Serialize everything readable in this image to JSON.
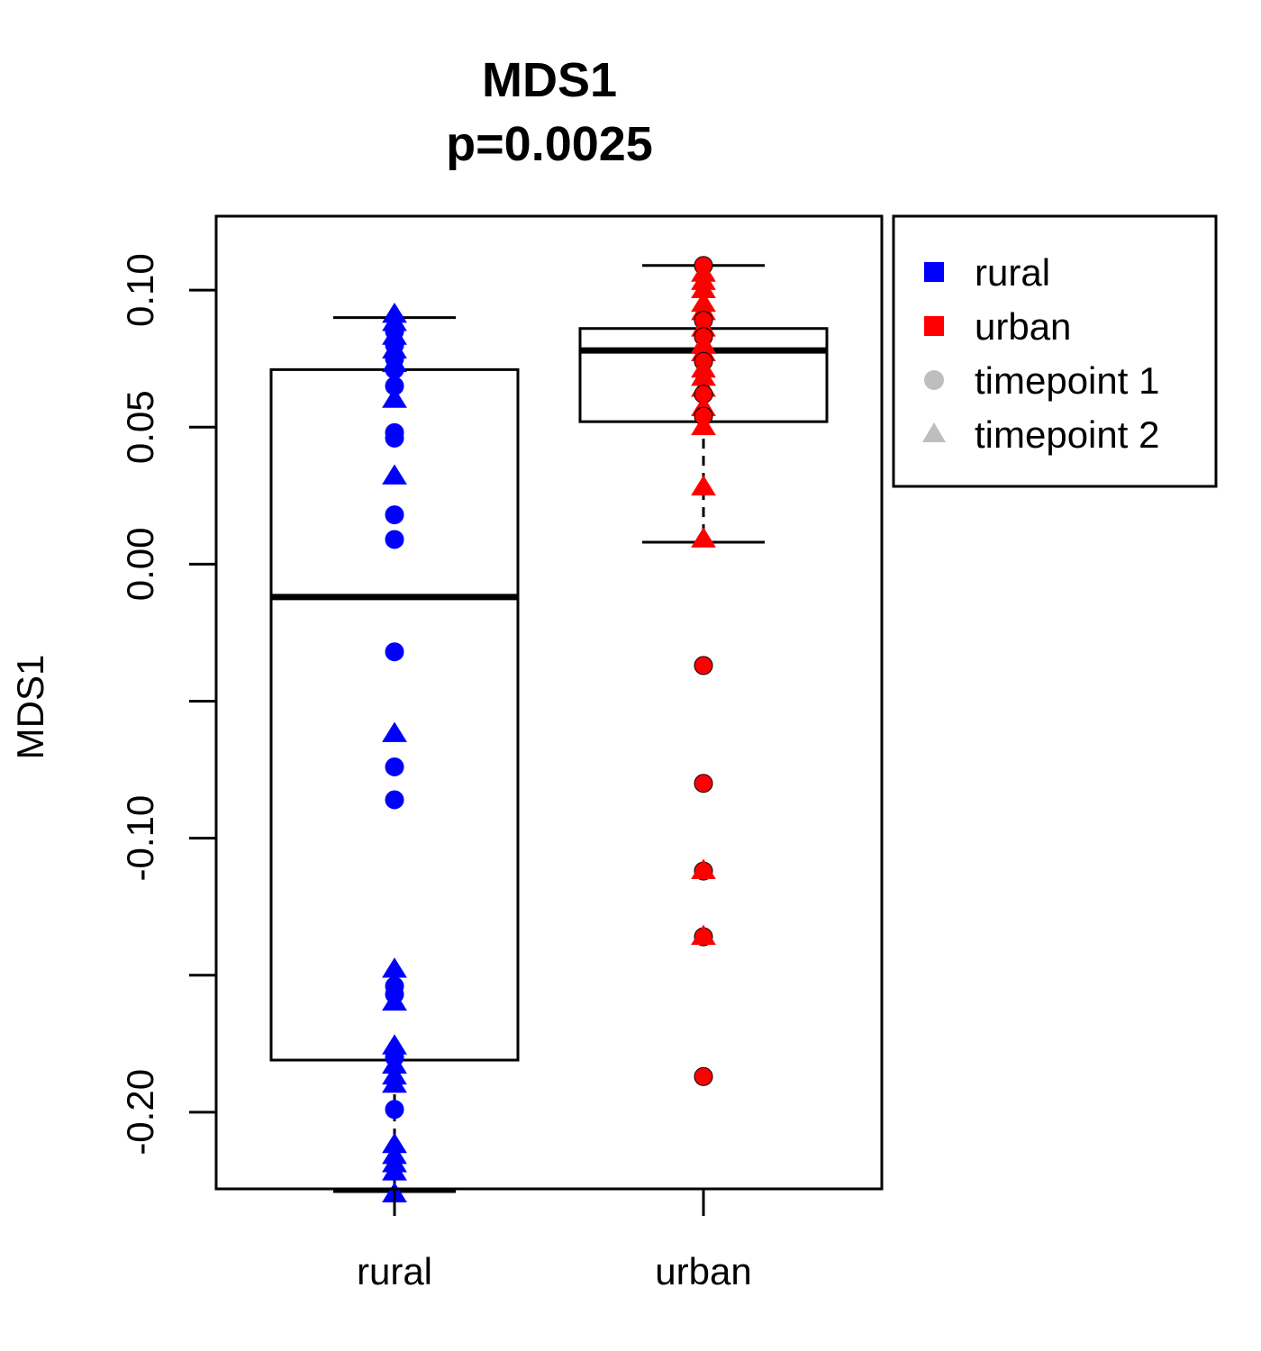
{
  "chart_data": {
    "type": "box",
    "title": "MDS1",
    "subtitle": "p=0.0025",
    "xlabel": "",
    "ylabel": "MDS1",
    "ylim": [
      -0.228,
      0.127
    ],
    "yticks": [
      -0.2,
      -0.15,
      -0.1,
      -0.05,
      0.0,
      0.05,
      0.1
    ],
    "ytick_labels": [
      "-0.20",
      "",
      "-0.10",
      "",
      "0.00",
      "0.05",
      "0.10"
    ],
    "categories": [
      "rural",
      "urban"
    ],
    "colors": {
      "rural": "#0000ff",
      "urban": "#ff0000",
      "timepoint": "#bebebe"
    },
    "boxes": [
      {
        "name": "rural",
        "whisker_low": -0.229,
        "q1": -0.181,
        "median": -0.012,
        "q3": 0.071,
        "whisker_high": 0.09
      },
      {
        "name": "urban",
        "whisker_low": 0.008,
        "q1": 0.052,
        "median": 0.078,
        "q3": 0.086,
        "whisker_high": 0.109
      }
    ],
    "series": [
      {
        "name": "rural",
        "points": [
          {
            "y": 0.091,
            "tp": 2
          },
          {
            "y": 0.088,
            "tp": 2
          },
          {
            "y": 0.085,
            "tp": 1
          },
          {
            "y": 0.083,
            "tp": 2
          },
          {
            "y": 0.08,
            "tp": 1
          },
          {
            "y": 0.078,
            "tp": 2
          },
          {
            "y": 0.075,
            "tp": 1
          },
          {
            "y": 0.073,
            "tp": 2
          },
          {
            "y": 0.071,
            "tp": 1
          },
          {
            "y": 0.065,
            "tp": 1
          },
          {
            "y": 0.06,
            "tp": 2
          },
          {
            "y": 0.048,
            "tp": 1
          },
          {
            "y": 0.046,
            "tp": 1
          },
          {
            "y": 0.032,
            "tp": 2
          },
          {
            "y": 0.018,
            "tp": 1
          },
          {
            "y": 0.009,
            "tp": 1
          },
          {
            "y": -0.032,
            "tp": 1
          },
          {
            "y": -0.062,
            "tp": 2
          },
          {
            "y": -0.074,
            "tp": 1
          },
          {
            "y": -0.086,
            "tp": 1
          },
          {
            "y": -0.148,
            "tp": 2
          },
          {
            "y": -0.154,
            "tp": 1
          },
          {
            "y": -0.157,
            "tp": 1
          },
          {
            "y": -0.16,
            "tp": 2
          },
          {
            "y": -0.176,
            "tp": 2
          },
          {
            "y": -0.18,
            "tp": 1
          },
          {
            "y": -0.183,
            "tp": 2
          },
          {
            "y": -0.187,
            "tp": 2
          },
          {
            "y": -0.19,
            "tp": 2
          },
          {
            "y": -0.199,
            "tp": 1
          },
          {
            "y": -0.212,
            "tp": 2
          },
          {
            "y": -0.216,
            "tp": 2
          },
          {
            "y": -0.219,
            "tp": 2
          },
          {
            "y": -0.222,
            "tp": 2
          },
          {
            "y": -0.23,
            "tp": 2
          }
        ]
      },
      {
        "name": "urban",
        "points": [
          {
            "y": 0.109,
            "tp": 1
          },
          {
            "y": 0.106,
            "tp": 2
          },
          {
            "y": 0.103,
            "tp": 2
          },
          {
            "y": 0.1,
            "tp": 2
          },
          {
            "y": 0.095,
            "tp": 2
          },
          {
            "y": 0.092,
            "tp": 2
          },
          {
            "y": 0.089,
            "tp": 1
          },
          {
            "y": 0.086,
            "tp": 2
          },
          {
            "y": 0.083,
            "tp": 1
          },
          {
            "y": 0.08,
            "tp": 2
          },
          {
            "y": 0.077,
            "tp": 2
          },
          {
            "y": 0.074,
            "tp": 1
          },
          {
            "y": 0.071,
            "tp": 2
          },
          {
            "y": 0.068,
            "tp": 2
          },
          {
            "y": 0.064,
            "tp": 2
          },
          {
            "y": 0.062,
            "tp": 1
          },
          {
            "y": 0.057,
            "tp": 2
          },
          {
            "y": 0.054,
            "tp": 1
          },
          {
            "y": 0.05,
            "tp": 2
          },
          {
            "y": 0.028,
            "tp": 2
          },
          {
            "y": 0.009,
            "tp": 2
          },
          {
            "y": -0.037,
            "tp": 1
          },
          {
            "y": -0.08,
            "tp": 1
          },
          {
            "y": -0.112,
            "tp": 1
          },
          {
            "y": -0.112,
            "tp": 2
          },
          {
            "y": -0.136,
            "tp": 1
          },
          {
            "y": -0.136,
            "tp": 2
          },
          {
            "y": -0.187,
            "tp": 1
          }
        ]
      }
    ],
    "legend": {
      "position": "right-outside",
      "entries": [
        {
          "label": "rural",
          "symbol": "square",
          "color": "#0000ff"
        },
        {
          "label": "urban",
          "symbol": "square",
          "color": "#ff0000"
        },
        {
          "label": "timepoint 1",
          "symbol": "circle",
          "color": "#bebebe"
        },
        {
          "label": "timepoint 2",
          "symbol": "triangle",
          "color": "#bebebe"
        }
      ]
    },
    "grid": false
  }
}
